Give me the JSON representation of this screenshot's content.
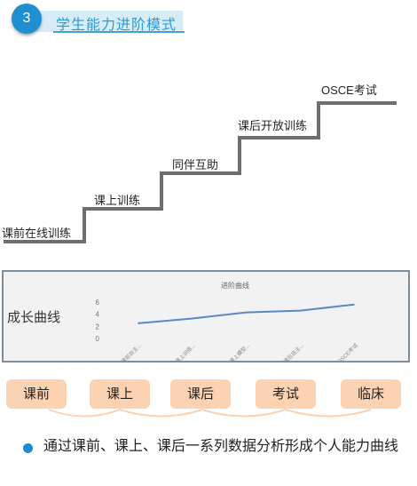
{
  "header": {
    "number": "3",
    "title": "学生能力进阶模式"
  },
  "stairs": [
    "课前在线训练",
    "课上训练",
    "同伴互助",
    "课后开放训练",
    "OSCE考试"
  ],
  "panel": {
    "label": "成长曲线"
  },
  "chart_data": {
    "type": "line",
    "title": "进阶曲线",
    "categories": [
      "课前自主...",
      "课上训练...",
      "课上模型...",
      "课后自主...",
      "OSCE考试"
    ],
    "series": [
      {
        "values": [
          2.5,
          3.3,
          4.3,
          4.6,
          5.6
        ]
      }
    ],
    "yticks": [
      0,
      2,
      4,
      6
    ],
    "ylim": [
      0,
      6
    ],
    "colors": {
      "line": "#5b87c8"
    }
  },
  "pills": [
    "课前",
    "课上",
    "课后",
    "考试",
    "临床"
  ],
  "bullet": {
    "text": "通过课前、课上、课后一系列数据分析形成个人能力曲线"
  },
  "colors": {
    "accent": "#1f8fd2",
    "pill": "#fbd2b2",
    "stair": "#6e6e6e"
  }
}
